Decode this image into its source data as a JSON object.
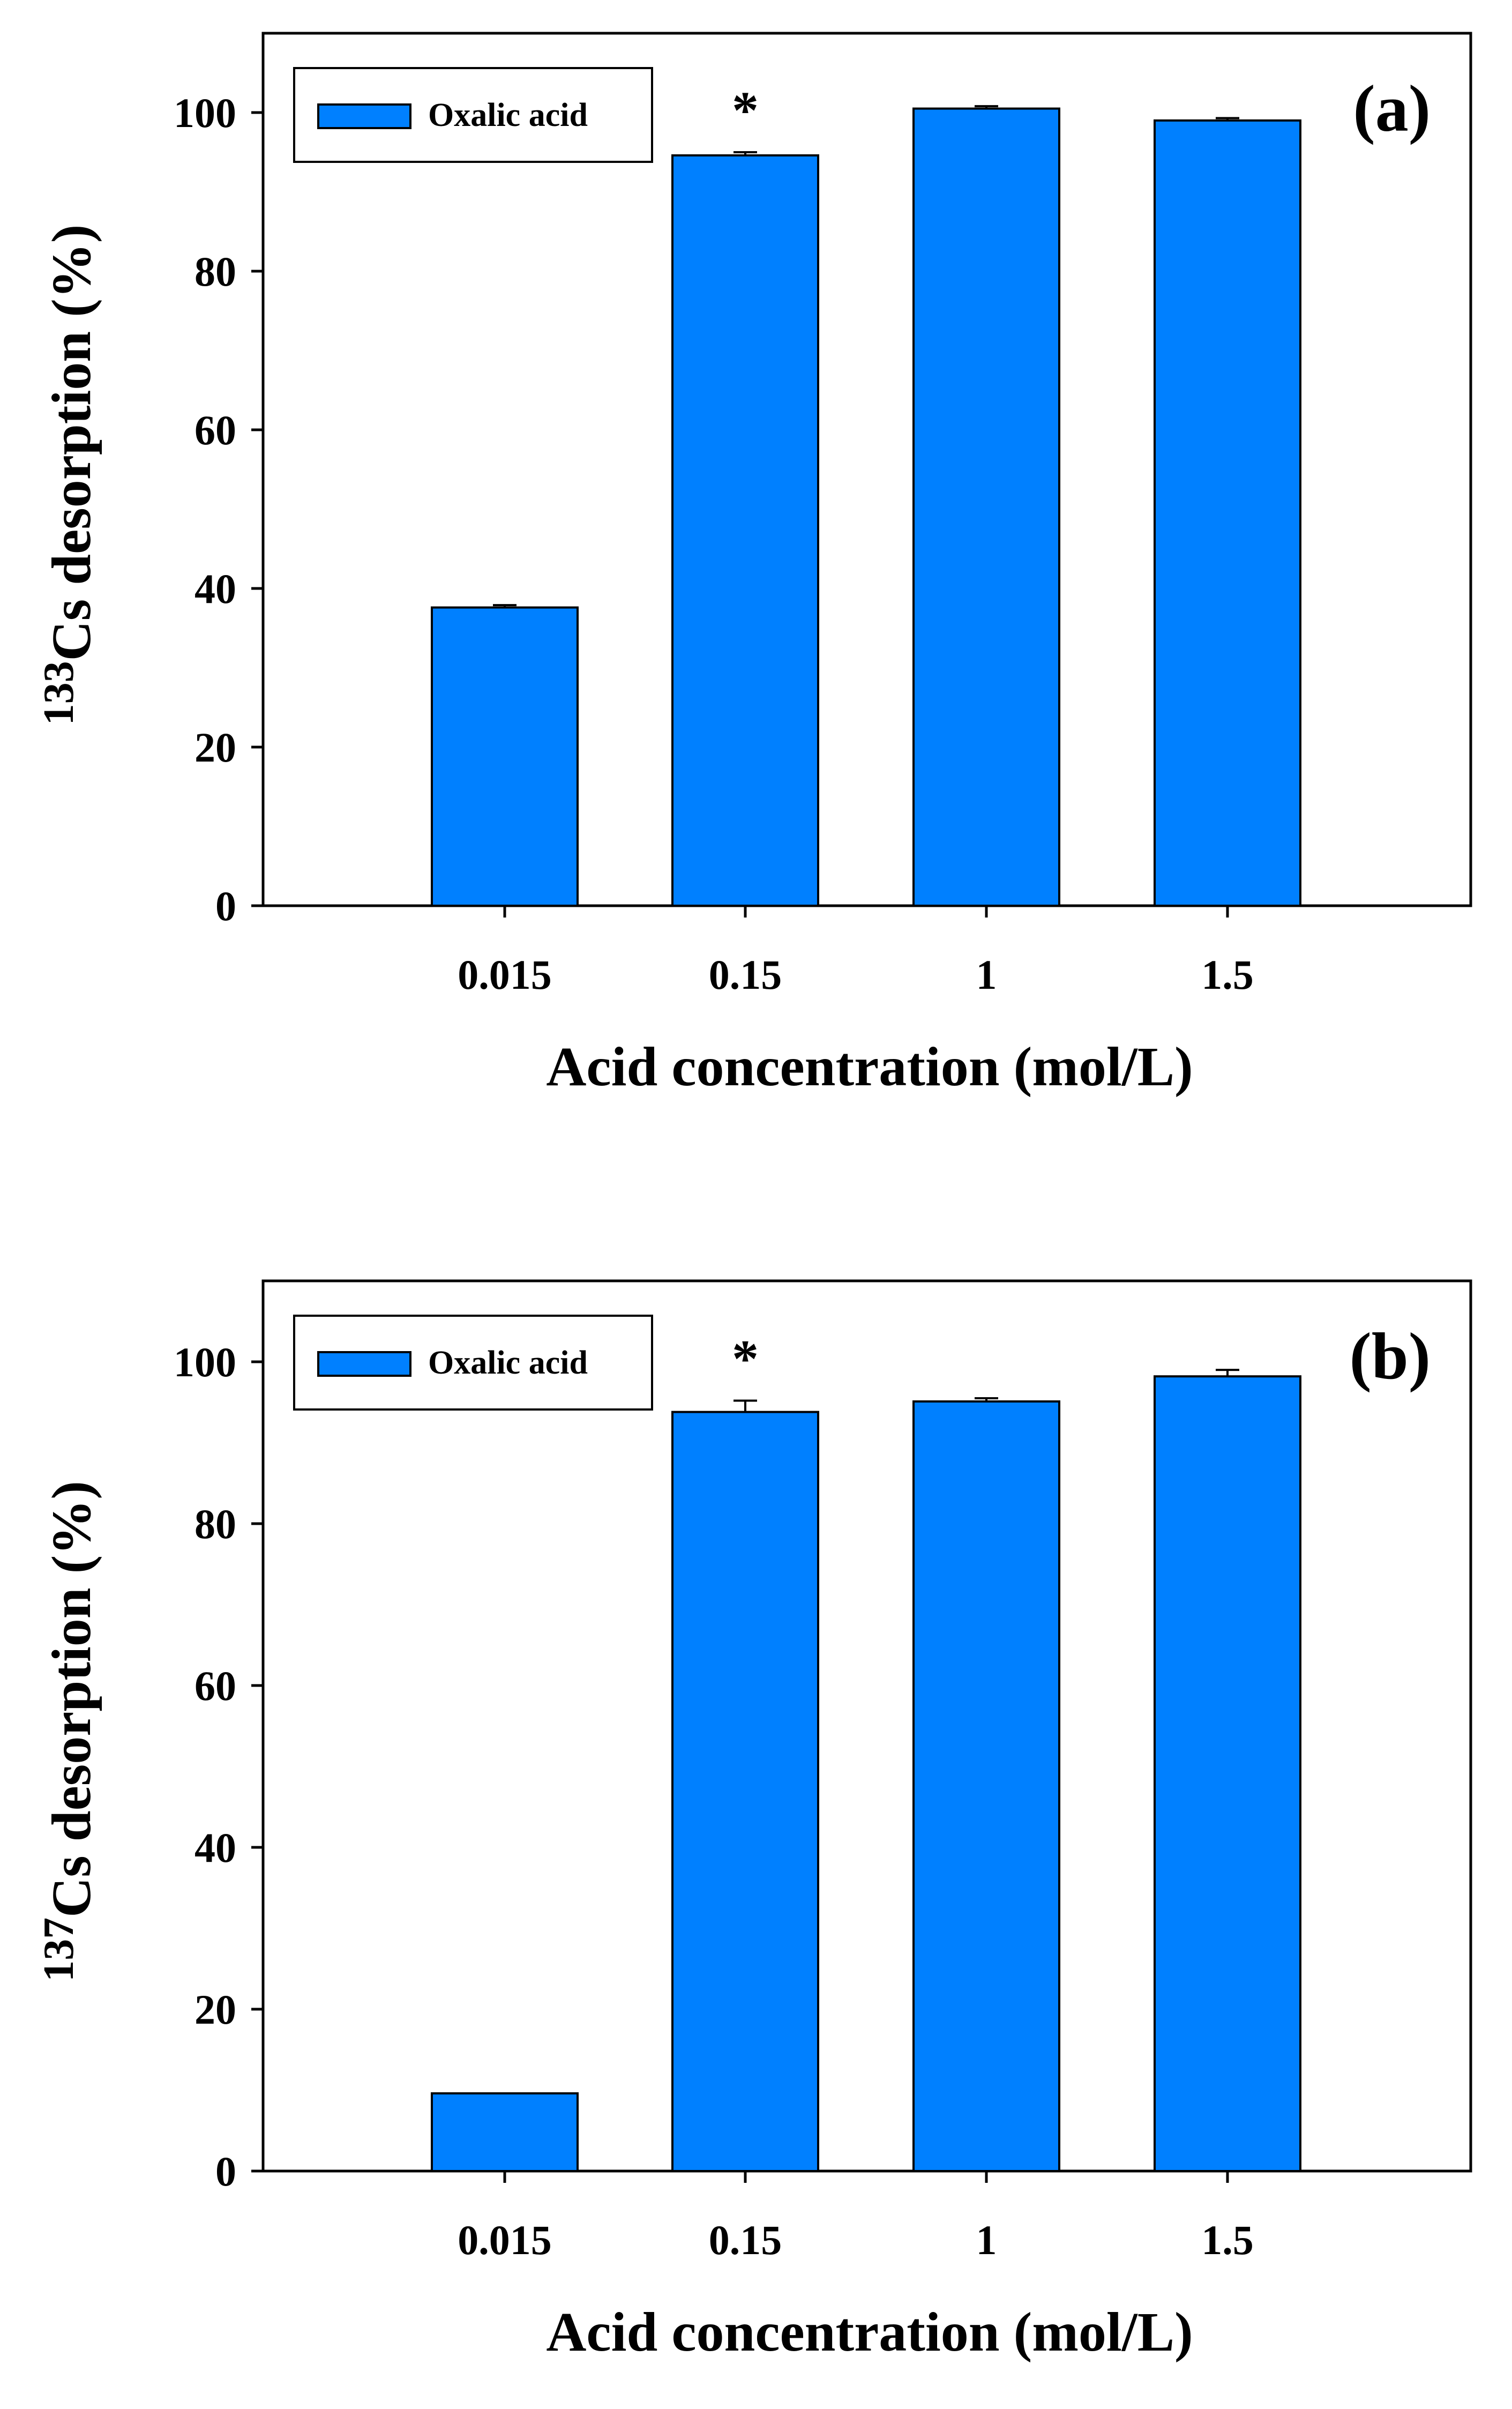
{
  "chart_data": [
    {
      "panel_label": "(a)",
      "type": "bar",
      "categories": [
        "0.015",
        "0.15",
        "1",
        "1.5"
      ],
      "series": [
        {
          "name": "Oxalic acid",
          "color": "#0080ff",
          "values": [
            37.6,
            94.6,
            100.5,
            99.0
          ],
          "errors": [
            0.3,
            0.4,
            0.3,
            0.3
          ]
        }
      ],
      "annotations": [
        {
          "category": "0.15",
          "text": "*"
        }
      ],
      "xlabel": "Acid concentration (mol/L)",
      "ylabel": {
        "sup": "133",
        "text": "Cs desorption (%)"
      },
      "ylim": [
        0,
        110
      ],
      "yticks": [
        0,
        20,
        40,
        60,
        80,
        100
      ],
      "legend": "top-left"
    },
    {
      "panel_label": "(b)",
      "type": "bar",
      "categories": [
        "0.015",
        "0.15",
        "1",
        "1.5"
      ],
      "series": [
        {
          "name": "Oxalic acid",
          "color": "#0080ff",
          "values": [
            9.6,
            93.8,
            95.1,
            98.2
          ],
          "errors": [
            0.0,
            1.4,
            0.4,
            0.8
          ]
        }
      ],
      "annotations": [
        {
          "category": "0.15",
          "text": "*"
        }
      ],
      "xlabel": "Acid concentration (mol/L)",
      "ylabel": {
        "sup": "137",
        "text": "Cs desorption (%)"
      },
      "ylim": [
        0,
        110
      ],
      "yticks": [
        0,
        20,
        40,
        60,
        80,
        100
      ],
      "legend": "top-left"
    }
  ]
}
